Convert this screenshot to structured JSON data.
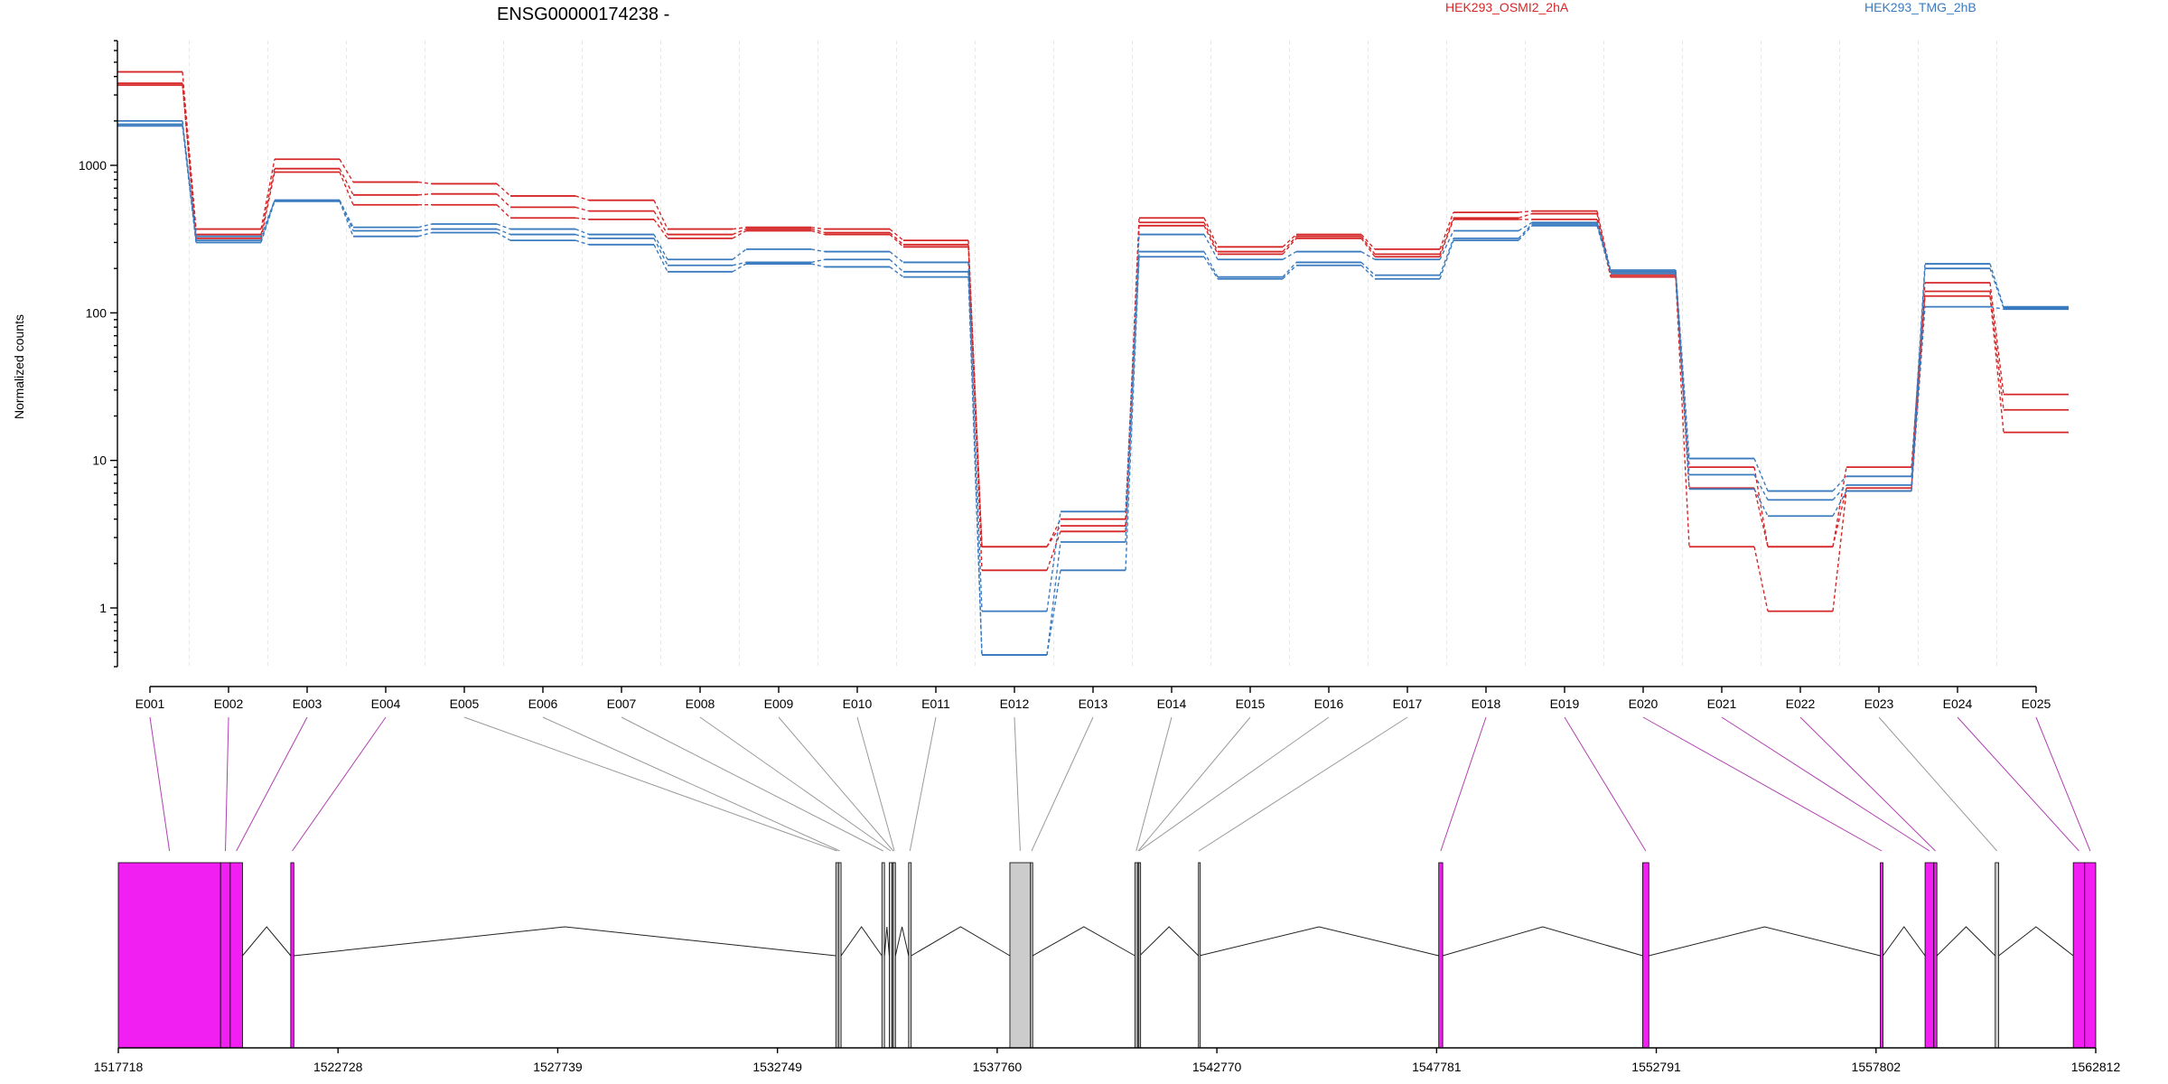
{
  "chart_data": {
    "type": "line",
    "title": "ENSG00000174238 -",
    "ylabel": "Normalized counts",
    "yscale": "log",
    "ylim": [
      0.4,
      7000
    ],
    "yticks": [
      1,
      10,
      100,
      1000
    ],
    "ytick_labels": [
      "1",
      "10",
      "100",
      "1000"
    ],
    "categories": [
      "E001",
      "E002",
      "E003",
      "E004",
      "E005",
      "E006",
      "E007",
      "E008",
      "E009",
      "E010",
      "E011",
      "E012",
      "E013",
      "E014",
      "E015",
      "E016",
      "E017",
      "E018",
      "E019",
      "E020",
      "E021",
      "E022",
      "E023",
      "E024",
      "E025"
    ],
    "legend": [
      {
        "label": "HEK293_OSMI2_2hA",
        "color": "#d62728"
      },
      {
        "label": "HEK293_TMG_2hB",
        "color": "#3a7bbf"
      }
    ],
    "colors": {
      "OSMI2": "#d62728",
      "TMG": "#3a7bbf",
      "exon_significant": "#f21ff2",
      "exon_normal": "#cccccc"
    },
    "series": [
      {
        "group": "OSMI2",
        "values": [
          4300,
          370,
          1100,
          770,
          750,
          620,
          580,
          370,
          380,
          370,
          310,
          2.6,
          4.0,
          440,
          280,
          340,
          270,
          480,
          490,
          190,
          9.0,
          2.6,
          9.0,
          160,
          28
        ]
      },
      {
        "group": "OSMI2",
        "values": [
          3600,
          340,
          950,
          630,
          640,
          520,
          490,
          340,
          370,
          350,
          290,
          2.6,
          3.6,
          410,
          260,
          330,
          250,
          440,
          470,
          180,
          6.5,
          2.6,
          6.5,
          140,
          22
        ]
      },
      {
        "group": "OSMI2",
        "values": [
          3500,
          320,
          900,
          540,
          540,
          440,
          430,
          320,
          360,
          340,
          280,
          1.8,
          3.3,
          390,
          250,
          320,
          240,
          430,
          430,
          175,
          2.6,
          0.95,
          6.2,
          130,
          15.5
        ]
      },
      {
        "group": "TMG",
        "values": [
          2000,
          330,
          580,
          380,
          400,
          370,
          340,
          230,
          270,
          260,
          220,
          0.95,
          4.5,
          340,
          230,
          260,
          230,
          360,
          410,
          195,
          10.3,
          6.2,
          7.8,
          215,
          110
        ]
      },
      {
        "group": "TMG",
        "values": [
          1900,
          310,
          580,
          360,
          370,
          340,
          320,
          210,
          220,
          230,
          190,
          0.48,
          2.8,
          260,
          175,
          220,
          180,
          320,
          400,
          190,
          8.0,
          5.4,
          6.8,
          200,
          108
        ]
      },
      {
        "group": "TMG",
        "values": [
          1850,
          300,
          570,
          330,
          350,
          310,
          290,
          190,
          215,
          205,
          175,
          0.48,
          1.8,
          240,
          170,
          210,
          170,
          310,
          390,
          185,
          6.4,
          4.2,
          6.2,
          110,
          106
        ]
      }
    ],
    "gene_model": {
      "x_ticks": [
        1517718,
        1522728,
        1527739,
        1532749,
        1537760,
        1542770,
        1547781,
        1552791,
        1557802,
        1562812
      ],
      "x_tick_labels": [
        "1517718",
        "1522728",
        "1527739",
        "1532749",
        "1537760",
        "1542770",
        "1547781",
        "1552791",
        "1557802",
        "1562812"
      ],
      "exons": [
        {
          "id": "E001",
          "start": 1517718,
          "end": 1520050,
          "significant": true
        },
        {
          "id": "E002",
          "start": 1520050,
          "end": 1520270,
          "significant": true
        },
        {
          "id": "E003",
          "start": 1520270,
          "end": 1520550,
          "significant": true
        },
        {
          "id": "E004",
          "start": 1521650,
          "end": 1521720,
          "significant": true
        },
        {
          "id": "E005",
          "start": 1534080,
          "end": 1534140,
          "significant": false
        },
        {
          "id": "E006",
          "start": 1534140,
          "end": 1534200,
          "significant": false
        },
        {
          "id": "E007",
          "start": 1535130,
          "end": 1535190,
          "significant": false
        },
        {
          "id": "E008",
          "start": 1535300,
          "end": 1535360,
          "significant": false
        },
        {
          "id": "E009",
          "start": 1535360,
          "end": 1535420,
          "significant": false
        },
        {
          "id": "E010",
          "start": 1535390,
          "end": 1535440,
          "significant": false
        },
        {
          "id": "E011",
          "start": 1535740,
          "end": 1535800,
          "significant": false
        },
        {
          "id": "E012",
          "start": 1538050,
          "end": 1538520,
          "significant": false
        },
        {
          "id": "E013",
          "start": 1538520,
          "end": 1538570,
          "significant": false
        },
        {
          "id": "E014",
          "start": 1540900,
          "end": 1540960,
          "significant": false
        },
        {
          "id": "E015",
          "start": 1540960,
          "end": 1540990,
          "significant": false
        },
        {
          "id": "E016",
          "start": 1540990,
          "end": 1541010,
          "significant": false
        },
        {
          "id": "E017",
          "start": 1542350,
          "end": 1542370,
          "significant": false
        },
        {
          "id": "E018",
          "start": 1547830,
          "end": 1547920,
          "significant": true
        },
        {
          "id": "E019",
          "start": 1552480,
          "end": 1552620,
          "significant": true
        },
        {
          "id": "E020",
          "start": 1557900,
          "end": 1557960,
          "significant": true
        },
        {
          "id": "E021",
          "start": 1558920,
          "end": 1559120,
          "significant": true
        },
        {
          "id": "E022",
          "start": 1559120,
          "end": 1559190,
          "significant": true
        },
        {
          "id": "E023",
          "start": 1560520,
          "end": 1560600,
          "significant": false
        },
        {
          "id": "E024",
          "start": 1562300,
          "end": 1562560,
          "significant": true
        },
        {
          "id": "E025",
          "start": 1562560,
          "end": 1562812,
          "significant": true
        }
      ],
      "introns": [
        [
          1520550,
          1521650
        ],
        [
          1521720,
          1534080
        ],
        [
          1534200,
          1535130
        ],
        [
          1535190,
          1535300
        ],
        [
          1535440,
          1535740
        ],
        [
          1535800,
          1538050
        ],
        [
          1538570,
          1540900
        ],
        [
          1541010,
          1542350
        ],
        [
          1542370,
          1547830
        ],
        [
          1547920,
          1552480
        ],
        [
          1552620,
          1557900
        ],
        [
          1557960,
          1558920
        ],
        [
          1559190,
          1560520
        ],
        [
          1560600,
          1562300
        ]
      ]
    }
  }
}
